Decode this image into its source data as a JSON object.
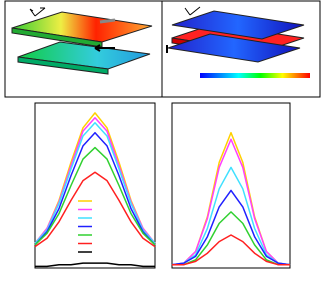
{
  "chart_data": [
    {
      "type": "line",
      "x": [
        0,
        1,
        2,
        3,
        4,
        5,
        6,
        7,
        8,
        9,
        10
      ],
      "xlim": [
        0,
        10
      ],
      "ylim": [
        0,
        1
      ],
      "legend": true,
      "series": [
        {
          "color": "#ffd000",
          "values": [
            0.15,
            0.24,
            0.41,
            0.64,
            0.85,
            0.94,
            0.85,
            0.64,
            0.41,
            0.24,
            0.15
          ]
        },
        {
          "color": "#ff40ff",
          "values": [
            0.15,
            0.24,
            0.4,
            0.62,
            0.83,
            0.91,
            0.83,
            0.62,
            0.4,
            0.24,
            0.15
          ]
        },
        {
          "color": "#40e0ff",
          "values": [
            0.15,
            0.23,
            0.39,
            0.6,
            0.8,
            0.88,
            0.8,
            0.6,
            0.39,
            0.23,
            0.15
          ]
        },
        {
          "color": "#2020ff",
          "values": [
            0.14,
            0.22,
            0.36,
            0.56,
            0.74,
            0.82,
            0.74,
            0.56,
            0.36,
            0.22,
            0.14
          ]
        },
        {
          "color": "#30d030",
          "values": [
            0.14,
            0.21,
            0.33,
            0.5,
            0.66,
            0.73,
            0.66,
            0.5,
            0.33,
            0.21,
            0.14
          ]
        },
        {
          "color": "#ff2020",
          "values": [
            0.13,
            0.18,
            0.28,
            0.41,
            0.53,
            0.58,
            0.53,
            0.41,
            0.28,
            0.18,
            0.13
          ]
        },
        {
          "color": "#000000",
          "values": [
            0.01,
            0.01,
            0.02,
            0.02,
            0.03,
            0.03,
            0.03,
            0.02,
            0.02,
            0.01,
            0.01
          ]
        }
      ]
    },
    {
      "type": "line",
      "x": [
        0,
        1,
        2,
        3,
        4,
        5,
        6,
        7,
        8,
        9,
        10
      ],
      "xlim": [
        0,
        10
      ],
      "ylim": [
        0,
        1
      ],
      "legend": false,
      "series": [
        {
          "color": "#ffd000",
          "values": [
            0.02,
            0.03,
            0.1,
            0.31,
            0.64,
            0.82,
            0.64,
            0.31,
            0.1,
            0.03,
            0.02
          ]
        },
        {
          "color": "#ff40ff",
          "values": [
            0.02,
            0.03,
            0.1,
            0.3,
            0.61,
            0.78,
            0.61,
            0.3,
            0.1,
            0.03,
            0.02
          ]
        },
        {
          "color": "#40e0ff",
          "values": [
            0.02,
            0.03,
            0.08,
            0.24,
            0.48,
            0.61,
            0.48,
            0.24,
            0.08,
            0.03,
            0.02
          ]
        },
        {
          "color": "#2020ff",
          "values": [
            0.02,
            0.03,
            0.07,
            0.19,
            0.37,
            0.47,
            0.37,
            0.19,
            0.07,
            0.03,
            0.02
          ]
        },
        {
          "color": "#30d030",
          "values": [
            0.02,
            0.02,
            0.05,
            0.14,
            0.27,
            0.34,
            0.27,
            0.14,
            0.05,
            0.02,
            0.02
          ]
        },
        {
          "color": "#ff2020",
          "values": [
            0.02,
            0.02,
            0.04,
            0.09,
            0.16,
            0.2,
            0.16,
            0.09,
            0.04,
            0.02,
            0.02
          ]
        }
      ]
    }
  ]
}
